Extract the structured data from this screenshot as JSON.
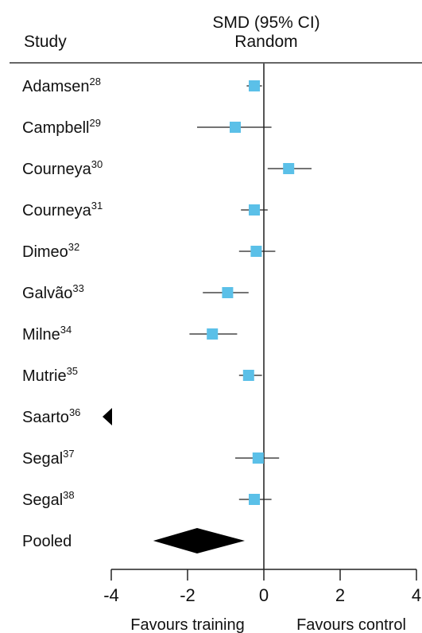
{
  "header": {
    "study_label": "Study",
    "metric_line1": "SMD (95% CI)",
    "metric_line2": "Random"
  },
  "chart_data": {
    "type": "forest",
    "xlim": [
      -4,
      4
    ],
    "ticks": [
      -4,
      -2,
      0,
      2,
      4
    ],
    "tick_labels": [
      "-4",
      "-2",
      "0",
      "2",
      "4"
    ],
    "xlabel_left": "Favours training",
    "xlabel_right": "Favours control",
    "colors": {
      "marker": "#5bc0e8",
      "line": "#222222",
      "pooled": "#000000",
      "axis": "#555555"
    },
    "studies": [
      {
        "name": "Adamsen",
        "ref": "28",
        "smd": -0.25,
        "lower": -0.45,
        "upper": -0.05
      },
      {
        "name": "Campbell",
        "ref": "29",
        "smd": -0.75,
        "lower": -1.75,
        "upper": 0.2
      },
      {
        "name": "Courneya",
        "ref": "30",
        "smd": 0.65,
        "lower": 0.1,
        "upper": 1.25
      },
      {
        "name": "Courneya",
        "ref": "31",
        "smd": -0.25,
        "lower": -0.6,
        "upper": 0.1
      },
      {
        "name": "Dimeo",
        "ref": "32",
        "smd": -0.2,
        "lower": -0.65,
        "upper": 0.3
      },
      {
        "name": "Galvão",
        "ref": "33",
        "smd": -0.95,
        "lower": -1.6,
        "upper": -0.4
      },
      {
        "name": "Milne",
        "ref": "34",
        "smd": -1.35,
        "lower": -1.95,
        "upper": -0.7
      },
      {
        "name": "Mutrie",
        "ref": "35",
        "smd": -0.4,
        "lower": -0.65,
        "upper": -0.05
      },
      {
        "name": "Saarto",
        "ref": "36",
        "smd": null,
        "lower": null,
        "upper": null,
        "off_scale": "left"
      },
      {
        "name": "Segal",
        "ref": "37",
        "smd": -0.15,
        "lower": -0.75,
        "upper": 0.4
      },
      {
        "name": "Segal",
        "ref": "38",
        "smd": -0.25,
        "lower": -0.65,
        "upper": 0.2
      }
    ],
    "pooled": {
      "name": "Pooled",
      "smd": -1.75,
      "lower": -2.9,
      "upper": -0.5
    }
  }
}
